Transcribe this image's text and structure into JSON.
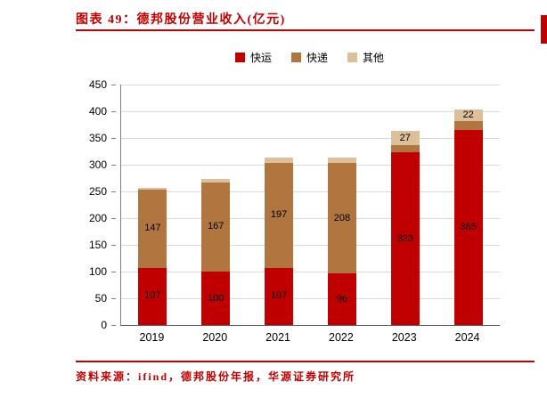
{
  "header": {
    "title": "图表 49：德邦股份营业收入(亿元)"
  },
  "chart_data": {
    "type": "bar",
    "stacked": true,
    "title": "图表 49：德邦股份营业收入(亿元)",
    "categories": [
      "2019",
      "2020",
      "2021",
      "2022",
      "2023",
      "2024"
    ],
    "series": [
      {
        "name": "快运",
        "color": "#c00000",
        "values": [
          107,
          100,
          107,
          96,
          323,
          365
        ],
        "labels": [
          "107",
          "100",
          "107",
          "96",
          "323",
          "365"
        ]
      },
      {
        "name": "快递",
        "color": "#b1763f",
        "values": [
          147,
          167,
          197,
          208,
          13,
          16
        ],
        "labels": [
          "147",
          "167",
          "197",
          "208",
          null,
          null
        ]
      },
      {
        "name": "其他",
        "color": "#dcc09a",
        "values": [
          3,
          6,
          9,
          9,
          27,
          22
        ],
        "labels": [
          null,
          null,
          null,
          null,
          "27",
          "22"
        ]
      }
    ],
    "ylim": [
      0,
      450
    ],
    "ytick_step": 50,
    "legend_position": "top",
    "grid": true
  },
  "footer": {
    "source": "资料来源：ifind，德邦股份年报，华源证券研究所"
  },
  "colors": {
    "accent": "#c00000",
    "grid": "#d9d9d9",
    "axis": "#7f7f7f",
    "label": "#000000"
  }
}
